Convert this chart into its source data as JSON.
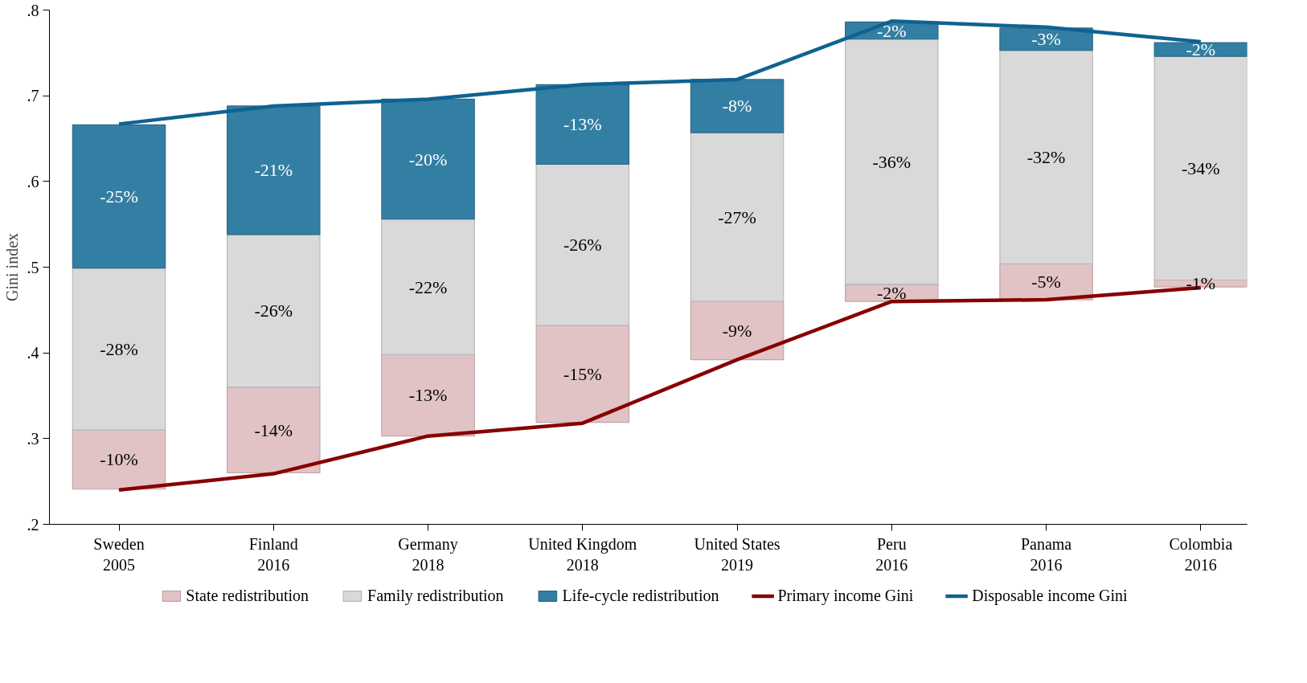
{
  "chart_data": {
    "type": "bar",
    "ylabel": "Gini index",
    "categories": [
      "Sweden\n2005",
      "Finland\n2016",
      "Germany\n2018",
      "United Kingdom\n2018",
      "United States\n2019",
      "Peru\n2016",
      "Panama\n2016",
      "Colombia\n2016"
    ],
    "series": [
      {
        "name": "State redistribution",
        "color": "#e2c3c5",
        "base": [
          0.241,
          0.26,
          0.303,
          0.319,
          0.392,
          0.46,
          0.462,
          0.477
        ],
        "values": [
          0.069,
          0.1,
          0.095,
          0.113,
          0.068,
          0.02,
          0.042,
          0.008
        ]
      },
      {
        "name": "Family redistribution",
        "color": "#d9d9d9",
        "base": [
          0.31,
          0.36,
          0.398,
          0.432,
          0.46,
          0.48,
          0.504,
          0.485
        ],
        "values": [
          0.189,
          0.178,
          0.158,
          0.188,
          0.197,
          0.286,
          0.249,
          0.261
        ]
      },
      {
        "name": "Life-cycle redistribution",
        "color": "#337fa3",
        "base": [
          0.499,
          0.538,
          0.556,
          0.62,
          0.657,
          0.766,
          0.753,
          0.746
        ],
        "values": [
          0.167,
          0.15,
          0.14,
          0.093,
          0.062,
          0.02,
          0.026,
          0.016
        ]
      },
      {
        "name": "Primary income Gini",
        "type": "line",
        "color": "#870000",
        "values": [
          0.24,
          0.259,
          0.303,
          0.318,
          0.392,
          0.46,
          0.462,
          0.476
        ]
      },
      {
        "name": "Disposable income Gini",
        "type": "line",
        "color": "#0e6391",
        "values": [
          0.667,
          0.688,
          0.696,
          0.713,
          0.719,
          0.787,
          0.78,
          0.763
        ]
      }
    ],
    "annotations": [
      "-10%",
      "-14%",
      "-13%",
      "-15%",
      "-9%",
      "-2%",
      "-5%",
      "-1%",
      "-28%",
      "-26%",
      "-22%",
      "-26%",
      "-27%",
      "-36%",
      "-32%",
      "-34%",
      "-25%",
      "-21%",
      "-20%",
      "-13%",
      "-8%",
      "-2%",
      "-3%",
      "-2%"
    ],
    "ylim": [
      0.2,
      0.8
    ],
    "yticks": [
      {
        "value": 0.2,
        "label": ".2"
      },
      {
        "value": 0.3,
        "label": ".3"
      },
      {
        "value": 0.4,
        "label": ".4"
      },
      {
        "value": 0.5,
        "label": ".5"
      },
      {
        "value": 0.6,
        "label": ".6"
      },
      {
        "value": 0.7,
        "label": ".7"
      },
      {
        "value": 0.8,
        "label": ".8"
      }
    ],
    "grid": false,
    "legend": "bottom"
  }
}
